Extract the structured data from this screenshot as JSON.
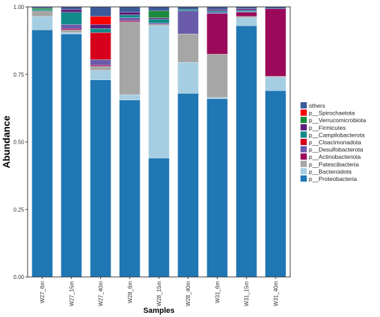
{
  "chart_data": {
    "type": "bar",
    "stacked": true,
    "xlabel": "Samples",
    "ylabel": "Abundance",
    "ylim": [
      0,
      1
    ],
    "yticks": [
      0,
      0.25,
      0.5,
      0.75,
      1
    ],
    "ytick_labels": [
      "0.00",
      "0.25",
      "0.50",
      "0.75",
      "1.00"
    ],
    "grid": false,
    "legend_position": "right",
    "categories": [
      "W27_6m",
      "W27_15m",
      "W27_40m",
      "W28_6m",
      "W28_15m",
      "W28_40m",
      "W31_6m",
      "W31_15m",
      "W31_40m"
    ],
    "series": [
      {
        "name": "p__Proteobacteria",
        "color": "#1F77B4",
        "values": [
          0.915,
          0.9,
          0.73,
          0.655,
          0.44,
          0.68,
          0.66,
          0.93,
          0.69
        ]
      },
      {
        "name": "p__Bacteroidota",
        "color": "#A6CEE3",
        "values": [
          0.05,
          0.005,
          0.035,
          0.02,
          0.49,
          0.115,
          0.005,
          0.03,
          0.05
        ]
      },
      {
        "name": "p__Patescibacteria",
        "color": "#A6A6A6",
        "values": [
          0.02,
          0.01,
          0.015,
          0.27,
          0.005,
          0.105,
          0.16,
          0.005,
          0.003
        ]
      },
      {
        "name": "p__Actinobacteriota",
        "color": "#9B0A5A",
        "values": [
          0.0,
          0.005,
          0.005,
          0.005,
          0.0,
          0.0,
          0.15,
          0.015,
          0.25
        ]
      },
      {
        "name": "p__Desulfobacterota",
        "color": "#6A5BAA",
        "values": [
          0.0,
          0.015,
          0.02,
          0.01,
          0.005,
          0.085,
          0.005,
          0.003,
          0.0
        ]
      },
      {
        "name": "p__Cloacimonadota",
        "color": "#D6001C",
        "values": [
          0.0,
          0.0,
          0.1,
          0.0,
          0.0,
          0.0,
          0.0,
          0.0,
          0.0
        ]
      },
      {
        "name": "p__Campilobacterota",
        "color": "#138A8A",
        "values": [
          0.005,
          0.045,
          0.015,
          0.01,
          0.015,
          0.005,
          0.005,
          0.005,
          0.0
        ]
      },
      {
        "name": "p__Firmicutes",
        "color": "#5B1E7A",
        "values": [
          0.0,
          0.01,
          0.015,
          0.01,
          0.005,
          0.0,
          0.005,
          0.005,
          0.0
        ]
      },
      {
        "name": "p__Verrucomicrobiota",
        "color": "#1A8A3C",
        "values": [
          0.005,
          0.0,
          0.0,
          0.0,
          0.025,
          0.0,
          0.0,
          0.0,
          0.0
        ]
      },
      {
        "name": "p__Spirochaetota",
        "color": "#FF0000",
        "values": [
          0.0,
          0.0,
          0.03,
          0.0,
          0.0,
          0.0,
          0.0,
          0.0,
          0.0
        ]
      },
      {
        "name": "others",
        "color": "#3C5A99",
        "values": [
          0.005,
          0.01,
          0.035,
          0.02,
          0.015,
          0.01,
          0.01,
          0.007,
          0.007
        ]
      }
    ],
    "legend_order": [
      "others",
      "p__Spirochaetota",
      "p__Verrucomicrobiota",
      "p__Firmicutes",
      "p__Campilobacterota",
      "p__Cloacimonadota",
      "p__Desulfobacterota",
      "p__Actinobacteriota",
      "p__Patescibacteria",
      "p__Bacteroidota",
      "p__Proteobacteria"
    ]
  }
}
